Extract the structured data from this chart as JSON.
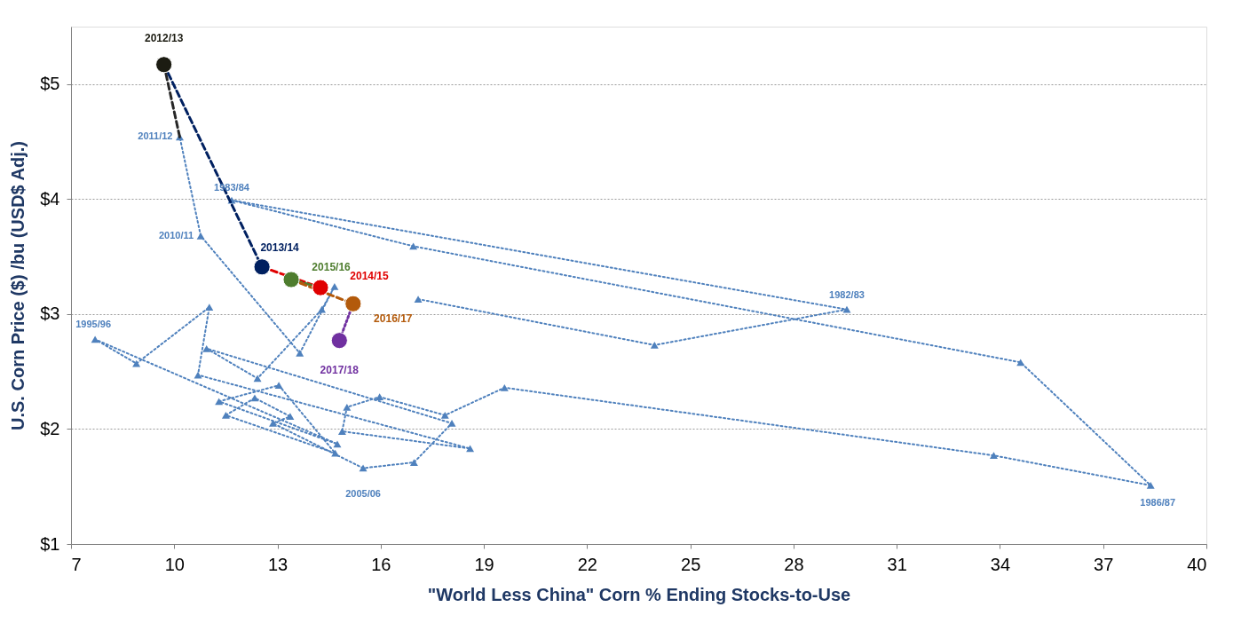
{
  "chart_data": {
    "type": "scatter",
    "xlabel": "\"World Less China\" Corn % Ending Stocks-to-Use",
    "ylabel": "U.S. Corn Price ($) /bu (USD$ Adj.)",
    "xlim": [
      7,
      40
    ],
    "xticks": [
      7,
      10,
      13,
      16,
      19,
      22,
      25,
      28,
      31,
      34,
      37,
      40
    ],
    "ylim": [
      1,
      5.5
    ],
    "yticks": [
      {
        "value": 1,
        "label": "$1"
      },
      {
        "value": 2,
        "label": "$2"
      },
      {
        "value": 3,
        "label": "$3"
      },
      {
        "value": 4,
        "label": "$4"
      },
      {
        "value": 5,
        "label": "$5"
      }
    ],
    "grid": "y",
    "series": [
      {
        "type": "line",
        "color": "#4f81bd",
        "marker": "triangle",
        "line_style": "dotted",
        "x": [
          17.09,
          23.96,
          29.55,
          11.67,
          16.95,
          34.6,
          38.38,
          33.82,
          19.6,
          17.87,
          15.97,
          15.02,
          14.88,
          18.6,
          10.69,
          11.02,
          8.9,
          7.7,
          14.74,
          11.3,
          13.04,
          14.68,
          11.5,
          12.34,
          13.37,
          12.87,
          15.49,
          16.97,
          18.07,
          10.94,
          12.42,
          14.29,
          14.66,
          13.65,
          10.77,
          10.16
        ],
        "values": [
          3.13,
          2.73,
          3.04,
          3.99,
          3.59,
          2.58,
          1.51,
          1.77,
          2.36,
          2.12,
          2.28,
          2.19,
          1.98,
          1.83,
          2.47,
          3.06,
          2.57,
          2.78,
          1.87,
          2.24,
          2.38,
          1.79,
          2.12,
          2.27,
          2.11,
          2.05,
          1.66,
          1.71,
          2.05,
          2.7,
          2.44,
          3.04,
          3.24,
          2.66,
          3.68,
          4.54
        ]
      },
      {
        "type": "line",
        "color": "#262626",
        "marker": "none",
        "line_style": "dashed",
        "x": [
          10.16,
          9.7
        ],
        "values": [
          4.54,
          5.17
        ]
      },
      {
        "type": "line",
        "color": "#002060",
        "marker": "none",
        "line_style": "dashed",
        "x": [
          9.7,
          12.55
        ],
        "values": [
          5.17,
          3.41
        ]
      },
      {
        "type": "line",
        "color": "#e00000",
        "marker": "none",
        "line_style": "dashed",
        "x": [
          12.55,
          14.25
        ],
        "values": [
          3.41,
          3.23
        ]
      },
      {
        "type": "line",
        "color": "#4e7d2e",
        "marker": "none",
        "line_style": "dashed",
        "x": [
          14.25,
          13.4
        ],
        "values": [
          3.23,
          3.3
        ]
      },
      {
        "type": "line",
        "color": "#b35a0b",
        "marker": "none",
        "line_style": "dashed",
        "x": [
          13.4,
          15.2
        ],
        "values": [
          3.3,
          3.09
        ]
      },
      {
        "type": "line",
        "color": "#7030a0",
        "marker": "none",
        "line_style": "dotted",
        "x": [
          15.2,
          14.8
        ],
        "values": [
          3.09,
          2.77
        ]
      },
      {
        "name": "2012/13",
        "color": "#1c1c12",
        "marker": "circle",
        "x": [
          9.7
        ],
        "values": [
          5.17
        ]
      },
      {
        "name": "2013/14",
        "color": "#002060",
        "marker": "circle",
        "x": [
          12.55
        ],
        "values": [
          3.41
        ]
      },
      {
        "name": "2015/16",
        "color": "#4e7d2e",
        "marker": "circle",
        "x": [
          13.4
        ],
        "values": [
          3.3
        ]
      },
      {
        "name": "2014/15",
        "color": "#e00000",
        "marker": "circle",
        "x": [
          14.25
        ],
        "values": [
          3.23
        ]
      },
      {
        "name": "2016/17",
        "color": "#b35a0b",
        "marker": "circle",
        "x": [
          15.2
        ],
        "values": [
          3.09
        ]
      },
      {
        "name": "2017/18",
        "color": "#7030a0",
        "marker": "circle",
        "x": [
          14.8
        ],
        "values": [
          2.77
        ]
      }
    ],
    "annotations": [
      {
        "text": "1982/83",
        "x": 29.55,
        "y": 3.04
      },
      {
        "text": "1983/84",
        "x": 11.67,
        "y": 3.99
      },
      {
        "text": "1986/87",
        "x": 38.38,
        "y": 1.51
      },
      {
        "text": "1995/96",
        "x": 7.7,
        "y": 2.78
      },
      {
        "text": "2005/06",
        "x": 15.49,
        "y": 1.66
      },
      {
        "text": "2010/11",
        "x": 10.77,
        "y": 3.68
      },
      {
        "text": "2011/12",
        "x": 10.16,
        "y": 4.54
      }
    ]
  }
}
